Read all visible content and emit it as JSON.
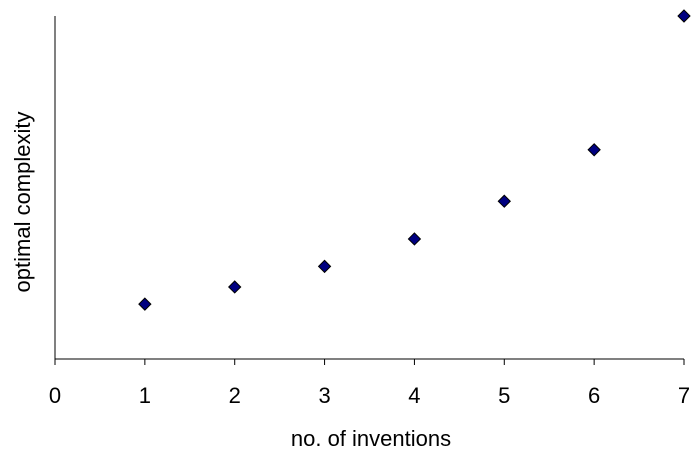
{
  "chart_data": {
    "type": "scatter",
    "title": "",
    "xlabel": "no. of inventions",
    "ylabel": "optimal complexity",
    "xlim": [
      0,
      7
    ],
    "x_ticks": [
      "0",
      "1",
      "2",
      "3",
      "4",
      "5",
      "6",
      "7"
    ],
    "y_ticks_labeled": false,
    "grid": false,
    "legend": "none",
    "marker": "diamond",
    "marker_color": "#000080",
    "series": [
      {
        "x": [
          1,
          2,
          3,
          4,
          5,
          6,
          7
        ],
        "y": [
          0.16,
          0.21,
          0.27,
          0.35,
          0.46,
          0.61,
          1.0
        ]
      }
    ]
  }
}
